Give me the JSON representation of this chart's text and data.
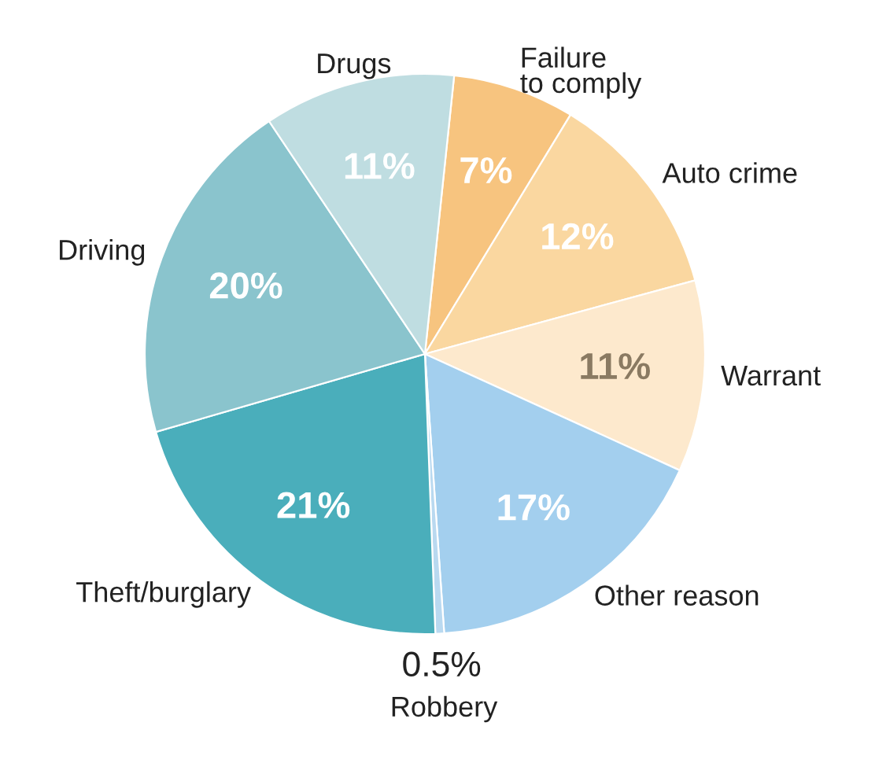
{
  "chart_data": {
    "type": "pie",
    "categories": [
      "Failure\nto comply",
      "Auto crime",
      "Warrant",
      "Other reason",
      "Robbery",
      "Theft/burglary",
      "Driving",
      "Drugs"
    ],
    "values": [
      7,
      12,
      11,
      17,
      0.5,
      21,
      20,
      11
    ],
    "value_labels": [
      "7%",
      "12%",
      "11%",
      "17%",
      "0.5%",
      "21%",
      "20%",
      "11%"
    ],
    "colors": [
      "#f7c47f",
      "#fad7a0",
      "#fde9cd",
      "#a3cfee",
      "#b9d9f0",
      "#4aaebb",
      "#8ac4cd",
      "#bfdde1"
    ]
  }
}
